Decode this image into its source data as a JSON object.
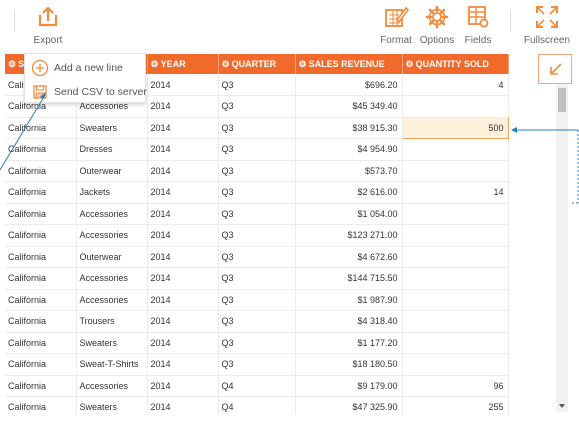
{
  "toolbar": {
    "export": "Export",
    "format": "Format",
    "options": "Options",
    "fields": "Fields",
    "fullscreen": "Fullscreen"
  },
  "export_menu": {
    "items": [
      {
        "label": "Add a new line",
        "icon": "plus-circle-icon"
      },
      {
        "label": "Send CSV to server",
        "icon": "save-icon"
      }
    ]
  },
  "grid": {
    "columns": [
      "ST",
      "",
      "YEAR",
      "QUARTER",
      "SALES REVENUE",
      "QUANTITY SOLD"
    ],
    "rows": [
      [
        "California",
        "",
        "2014",
        "Q3",
        "$696.20",
        "4"
      ],
      [
        "California",
        "Accessories",
        "2014",
        "Q3",
        "$45 349.40",
        ""
      ],
      [
        "California",
        "Sweaters",
        "2014",
        "Q3",
        "$38 915.30",
        "500"
      ],
      [
        "California",
        "Dresses",
        "2014",
        "Q3",
        "$4 954.90",
        ""
      ],
      [
        "California",
        "Outerwear",
        "2014",
        "Q3",
        "$573.70",
        ""
      ],
      [
        "California",
        "Jackets",
        "2014",
        "Q3",
        "$2 616.00",
        "14"
      ],
      [
        "California",
        "Accessories",
        "2014",
        "Q3",
        "$1 054.00",
        ""
      ],
      [
        "California",
        "Accessories",
        "2014",
        "Q3",
        "$123 271.00",
        ""
      ],
      [
        "California",
        "Outerwear",
        "2014",
        "Q3",
        "$4 672.60",
        ""
      ],
      [
        "California",
        "Accessories",
        "2014",
        "Q3",
        "$144 715.50",
        ""
      ],
      [
        "California",
        "Accessories",
        "2014",
        "Q3",
        "$1 987.90",
        ""
      ],
      [
        "California",
        "Trousers",
        "2014",
        "Q3",
        "$4 318.40",
        ""
      ],
      [
        "California",
        "Sweaters",
        "2014",
        "Q3",
        "$1 177.20",
        ""
      ],
      [
        "California",
        "Sweat-T-Shirts",
        "2014",
        "Q3",
        "$18 180.50",
        ""
      ],
      [
        "California",
        "Accessories",
        "2014",
        "Q4",
        "$9 179.00",
        "96"
      ],
      [
        "California",
        "Sweaters",
        "2014",
        "Q4",
        "$47 325.90",
        "255"
      ]
    ],
    "selected_cell": {
      "row": 2,
      "col": 5
    }
  },
  "colors": {
    "accent": "#f26a2b",
    "icon_orange": "#f28b3c",
    "annotation_blue": "#2a7db8"
  }
}
